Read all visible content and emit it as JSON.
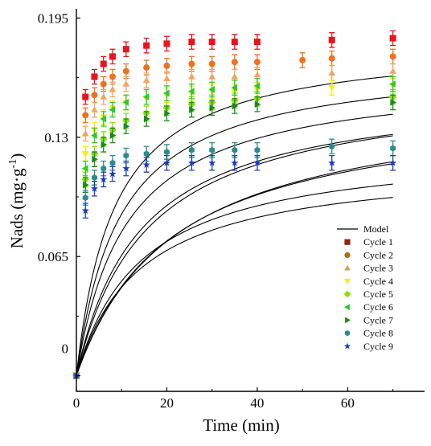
{
  "chart_data": {
    "type": "scatter",
    "title": "",
    "xlabel": "Time (min)",
    "ylabel_main": "Nads (mg·g",
    "ylabel_sup": "-1",
    "ylabel_close": ")",
    "xlim": [
      0,
      77
    ],
    "ylim": [
      -0.0085,
      0.2
    ],
    "x_ticks": [
      0,
      20,
      40,
      60
    ],
    "x_tick_labels": [
      "0",
      "20",
      "40",
      "60"
    ],
    "y_ticks": [
      0,
      0.065,
      0.13,
      0.195
    ],
    "y_tick_labels": [
      "0",
      "0.065",
      "0.13",
      "0.195"
    ],
    "grid": false,
    "legend_position": "bottom-right",
    "legend_model_label": "Model",
    "x": [
      0,
      2,
      4,
      6,
      8,
      11,
      15.5,
      20,
      25.5,
      30,
      35,
      40,
      50,
      56.5,
      70
    ],
    "series": [
      {
        "name": "Cycle 1",
        "color": "#e8141c",
        "marker": "square",
        "values": [
          0,
          0.152,
          0.163,
          0.17,
          0.174,
          0.178,
          0.18,
          0.181,
          0.182,
          0.182,
          0.182,
          0.182,
          null,
          0.183,
          0.184
        ],
        "err": [
          0,
          0.004,
          0.004,
          0.004,
          0.004,
          0.004,
          0.004,
          0.004,
          0.004,
          0.004,
          0.004,
          0.004,
          null,
          0.004,
          0.004
        ],
        "model": {
          "qe": 0.183,
          "k": 0.65
        }
      },
      {
        "name": "Cycle 2",
        "color": "#f07020",
        "marker": "circle",
        "values": [
          0,
          0.142,
          0.153,
          0.159,
          0.163,
          0.166,
          0.168,
          0.169,
          0.17,
          0.17,
          0.171,
          0.171,
          0.172,
          0.173,
          0.174
        ],
        "err": [
          0,
          0.004,
          0.004,
          0.004,
          0.004,
          0.004,
          0.004,
          0.004,
          0.004,
          0.004,
          0.004,
          0.004,
          0.004,
          0.004,
          0.004
        ],
        "model": {
          "qe": 0.173,
          "k": 0.6
        }
      },
      {
        "name": "Cycle 3",
        "color": "#f4a460",
        "marker": "triangle",
        "values": [
          0,
          0.132,
          0.145,
          0.152,
          0.156,
          0.159,
          0.161,
          0.162,
          0.163,
          0.163,
          0.163,
          0.164,
          null,
          0.165,
          0.166
        ],
        "err": [
          0,
          0.004,
          0.004,
          0.004,
          0.004,
          0.004,
          0.004,
          0.004,
          0.004,
          0.004,
          0.004,
          0.004,
          null,
          0.004,
          0.004
        ],
        "model": {
          "qe": 0.165,
          "k": 0.55
        }
      },
      {
        "name": "Cycle 4",
        "color": "#f0f00a",
        "marker": "triangle-down",
        "values": [
          0,
          0.121,
          0.134,
          0.141,
          0.146,
          0.149,
          0.151,
          0.153,
          0.154,
          0.155,
          0.155,
          0.156,
          null,
          0.157,
          0.158
        ],
        "err": [
          0,
          0.004,
          0.004,
          0.004,
          0.004,
          0.004,
          0.004,
          0.004,
          0.004,
          0.004,
          0.004,
          0.004,
          null,
          0.004,
          0.004
        ],
        "model": {
          "qe": 0.158,
          "k": 0.45
        }
      },
      {
        "name": "Cycle 5",
        "color": "#88e000",
        "marker": "diamond",
        "values": [
          0,
          0.107,
          0.121,
          0.129,
          0.134,
          0.139,
          0.143,
          0.146,
          0.148,
          0.149,
          0.15,
          0.151,
          null,
          null,
          0.152
        ],
        "err": [
          0,
          0.004,
          0.004,
          0.004,
          0.004,
          0.004,
          0.004,
          0.004,
          0.004,
          0.004,
          0.004,
          0.004,
          null,
          null,
          0.004
        ],
        "model": {
          "qe": 0.153,
          "k": 0.3
        }
      },
      {
        "name": "Cycle 6",
        "color": "#2ec82e",
        "marker": "triangle-left",
        "values": [
          0,
          0.113,
          0.131,
          0.14,
          0.145,
          0.149,
          0.152,
          0.154,
          0.155,
          0.156,
          0.157,
          0.158,
          null,
          null,
          0.159
        ],
        "err": [
          0,
          0.004,
          0.004,
          0.004,
          0.004,
          0.004,
          0.004,
          0.004,
          0.004,
          0.004,
          0.004,
          0.004,
          null,
          null,
          0.004
        ],
        "model": {
          "qe": 0.16,
          "k": 0.4
        }
      },
      {
        "name": "Cycle 7",
        "color": "#1a8c1a",
        "marker": "triangle-right",
        "values": [
          0,
          0.104,
          0.118,
          0.126,
          0.131,
          0.136,
          0.14,
          0.143,
          0.145,
          0.146,
          0.147,
          0.148,
          null,
          null,
          0.149
        ],
        "err": [
          0,
          0.004,
          0.004,
          0.004,
          0.004,
          0.004,
          0.004,
          0.004,
          0.004,
          0.004,
          0.004,
          0.004,
          null,
          null,
          0.004
        ],
        "model": {
          "qe": 0.15,
          "k": 0.32
        }
      },
      {
        "name": "Cycle 8",
        "color": "#2a8c8c",
        "marker": "hexagon",
        "values": [
          0,
          0.097,
          0.108,
          0.113,
          0.116,
          0.12,
          0.121,
          0.122,
          0.123,
          0.123,
          0.123,
          0.123,
          null,
          0.125,
          0.124
        ],
        "err": [
          0,
          0.004,
          0.004,
          0.004,
          0.004,
          0.004,
          0.004,
          0.004,
          0.004,
          0.004,
          0.004,
          0.004,
          null,
          0.004,
          0.004
        ],
        "model": {
          "qe": 0.126,
          "k": 0.55
        }
      },
      {
        "name": "Cycle 9",
        "color": "#1e3cc8",
        "marker": "star",
        "values": [
          0,
          0.09,
          0.102,
          0.107,
          0.11,
          0.113,
          0.115,
          0.116,
          0.116,
          0.116,
          0.116,
          0.116,
          null,
          0.116,
          0.116
        ],
        "err": [
          0,
          0.004,
          0.004,
          0.004,
          0.004,
          0.004,
          0.004,
          0.004,
          0.004,
          0.004,
          0.004,
          0.004,
          null,
          0.004,
          0.004
        ],
        "model": {
          "qe": 0.117,
          "k": 0.6
        }
      }
    ]
  }
}
